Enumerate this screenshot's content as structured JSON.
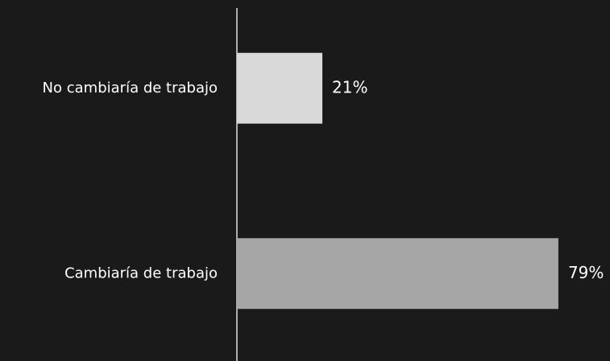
{
  "chart_data": {
    "type": "barh",
    "categories": [
      "No cambiaría de trabajo",
      "Cambiaría de trabajo"
    ],
    "values": [
      21,
      79
    ],
    "value_labels": [
      "21%",
      "79%"
    ],
    "colors": [
      "#d9d9d9",
      "#a6a6a6"
    ],
    "xlim": [
      0,
      100
    ]
  }
}
